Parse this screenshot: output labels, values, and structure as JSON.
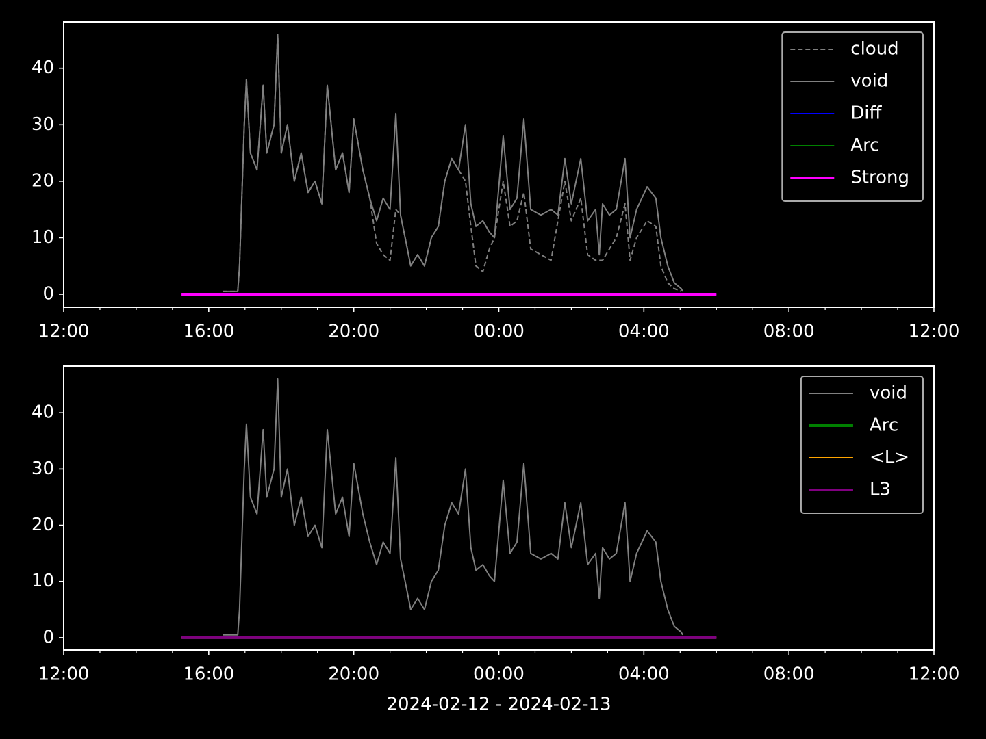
{
  "chart_data": [
    {
      "type": "line",
      "xlim": [
        0,
        24
      ],
      "xticks": [
        {
          "value": 0,
          "label": "12:00"
        },
        {
          "value": 4,
          "label": "16:00"
        },
        {
          "value": 8,
          "label": "20:00"
        },
        {
          "value": 12,
          "label": "00:00"
        },
        {
          "value": 16,
          "label": "04:00"
        },
        {
          "value": 20,
          "label": "08:00"
        },
        {
          "value": 24,
          "label": "12:00"
        }
      ],
      "xminorticks": [
        1,
        2,
        3,
        5,
        6,
        7,
        9,
        10,
        11,
        13,
        14,
        15,
        17,
        18,
        19,
        21,
        22,
        23
      ],
      "ylim": [
        -2.3,
        48.2
      ],
      "yticks": [
        0,
        10,
        20,
        30,
        40
      ],
      "legend": "upper right",
      "series": [
        {
          "name": "cloud",
          "color": "#808080",
          "dashed": true,
          "width": 2,
          "x": [
            4.38,
            4.6,
            4.8,
            4.85,
            4.98,
            5.04,
            5.15,
            5.33,
            5.5,
            5.6,
            5.8,
            5.9,
            6.0,
            6.17,
            6.36,
            6.55,
            6.74,
            6.93,
            7.12,
            7.27,
            7.5,
            7.69,
            7.87,
            8.0,
            8.25,
            8.44,
            8.63,
            8.81,
            9.0,
            9.16,
            9.29,
            9.48,
            9.57,
            9.76,
            9.95,
            10.14,
            10.33,
            10.51,
            10.7,
            10.89,
            11.08,
            11.23,
            11.37,
            11.56,
            11.74,
            11.88,
            12.12,
            12.31,
            12.5,
            12.69,
            12.88,
            13.16,
            13.44,
            13.63,
            13.82,
            14.0,
            14.26,
            14.45,
            14.67,
            14.86,
            15.05,
            15.24,
            15.48,
            15.62,
            15.8,
            16.09,
            16.33,
            16.47,
            16.66,
            16.84,
            17.03
          ],
          "values": [
            0.5,
            0.5,
            0.5,
            5,
            30,
            38,
            25,
            22,
            37,
            25,
            30,
            46,
            25,
            30,
            20,
            25,
            18,
            20,
            16,
            37,
            22,
            25,
            18,
            31,
            22,
            17,
            9,
            7,
            6,
            15,
            14,
            8,
            5,
            7,
            5,
            10,
            12,
            20,
            24,
            22,
            20,
            12,
            5,
            4,
            8,
            10,
            20,
            12,
            13,
            18,
            8,
            7,
            6,
            13,
            20,
            13,
            17,
            7,
            6,
            6,
            8,
            10,
            16,
            6,
            10,
            13,
            12,
            5,
            2,
            1,
            0.5
          ]
        },
        {
          "name": "void",
          "color": "#808080",
          "width": 2,
          "x": [
            4.38,
            4.6,
            4.8,
            4.85,
            4.98,
            5.04,
            5.15,
            5.33,
            5.5,
            5.6,
            5.8,
            5.9,
            6.0,
            6.17,
            6.36,
            6.55,
            6.74,
            6.93,
            7.12,
            7.27,
            7.5,
            7.69,
            7.87,
            8.0,
            8.25,
            8.44,
            8.63,
            8.81,
            9.0,
            9.16,
            9.29,
            9.48,
            9.57,
            9.76,
            9.95,
            10.14,
            10.33,
            10.51,
            10.7,
            10.89,
            11.08,
            11.23,
            11.37,
            11.56,
            11.74,
            11.88,
            12.12,
            12.31,
            12.5,
            12.69,
            12.88,
            13.16,
            13.44,
            13.63,
            13.82,
            14.0,
            14.26,
            14.45,
            14.67,
            14.77,
            14.86,
            15.05,
            15.24,
            15.48,
            15.62,
            15.8,
            16.09,
            16.33,
            16.47,
            16.66,
            16.84,
            17.03,
            17.07
          ],
          "values": [
            0.5,
            0.5,
            0.5,
            5,
            30,
            38,
            25,
            22,
            37,
            25,
            30,
            46,
            25,
            30,
            20,
            25,
            18,
            20,
            16,
            37,
            22,
            25,
            18,
            31,
            22,
            17,
            13,
            17,
            15,
            32,
            14,
            8,
            5,
            7,
            5,
            10,
            12,
            20,
            24,
            22,
            30,
            16,
            12,
            13,
            11,
            10,
            28,
            15,
            17,
            31,
            15,
            14,
            15,
            14,
            24,
            16,
            24,
            13,
            15,
            7,
            16,
            14,
            15,
            24,
            10,
            15,
            19,
            17,
            10,
            5,
            2,
            1,
            0.5
          ]
        },
        {
          "name": "Diff",
          "color": "#0000ff",
          "width": 2,
          "x": [
            3.25,
            18
          ],
          "values": [
            0,
            0
          ]
        },
        {
          "name": "Arc",
          "color": "#008000",
          "width": 2,
          "x": [
            3.25,
            18
          ],
          "values": [
            0,
            0
          ]
        },
        {
          "name": "Strong",
          "color": "#ff00ff",
          "width": 4,
          "x": [
            3.25,
            18
          ],
          "values": [
            0,
            0
          ]
        }
      ]
    },
    {
      "type": "line",
      "xlim": [
        0,
        24
      ],
      "xticks": [
        {
          "value": 0,
          "label": "12:00"
        },
        {
          "value": 4,
          "label": "16:00"
        },
        {
          "value": 8,
          "label": "20:00"
        },
        {
          "value": 12,
          "label": "00:00"
        },
        {
          "value": 16,
          "label": "04:00"
        },
        {
          "value": 20,
          "label": "08:00"
        },
        {
          "value": 24,
          "label": "12:00"
        }
      ],
      "xminorticks": [
        1,
        2,
        3,
        5,
        6,
        7,
        9,
        10,
        11,
        13,
        14,
        15,
        17,
        18,
        19,
        21,
        22,
        23
      ],
      "ylim": [
        -2.2,
        48.3
      ],
      "yticks": [
        0,
        10,
        20,
        30,
        40
      ],
      "legend": "upper right",
      "xlabel": "2024-02-12 - 2024-02-13",
      "series": [
        {
          "name": "void",
          "color": "#808080",
          "width": 2,
          "x": [
            4.38,
            4.6,
            4.8,
            4.85,
            4.98,
            5.04,
            5.15,
            5.33,
            5.5,
            5.6,
            5.8,
            5.9,
            6.0,
            6.17,
            6.36,
            6.55,
            6.74,
            6.93,
            7.12,
            7.27,
            7.5,
            7.69,
            7.87,
            8.0,
            8.25,
            8.44,
            8.63,
            8.81,
            9.0,
            9.16,
            9.29,
            9.48,
            9.57,
            9.76,
            9.95,
            10.14,
            10.33,
            10.51,
            10.7,
            10.89,
            11.08,
            11.23,
            11.37,
            11.56,
            11.74,
            11.88,
            12.12,
            12.31,
            12.5,
            12.69,
            12.88,
            13.16,
            13.44,
            13.63,
            13.82,
            14.0,
            14.26,
            14.45,
            14.67,
            14.77,
            14.86,
            15.05,
            15.24,
            15.48,
            15.62,
            15.8,
            16.09,
            16.33,
            16.47,
            16.66,
            16.84,
            17.03,
            17.07
          ],
          "values": [
            0.5,
            0.5,
            0.5,
            5,
            30,
            38,
            25,
            22,
            37,
            25,
            30,
            46,
            25,
            30,
            20,
            25,
            18,
            20,
            16,
            37,
            22,
            25,
            18,
            31,
            22,
            17,
            13,
            17,
            15,
            32,
            14,
            8,
            5,
            7,
            5,
            10,
            12,
            20,
            24,
            22,
            30,
            16,
            12,
            13,
            11,
            10,
            28,
            15,
            17,
            31,
            15,
            14,
            15,
            14,
            24,
            16,
            24,
            13,
            15,
            7,
            16,
            14,
            15,
            24,
            10,
            15,
            19,
            17,
            10,
            5,
            2,
            1,
            0.5
          ]
        },
        {
          "name": "Arc",
          "color": "#008000",
          "width": 4,
          "x": [
            3.25,
            18
          ],
          "values": [
            0,
            0
          ]
        },
        {
          "name": "<L>",
          "color": "#ffa500",
          "width": 2,
          "x": [
            3.25,
            18
          ],
          "values": [
            0,
            0
          ]
        },
        {
          "name": "L3",
          "color": "#800080",
          "width": 4,
          "x": [
            3.25,
            18
          ],
          "values": [
            0,
            0
          ]
        }
      ]
    }
  ]
}
